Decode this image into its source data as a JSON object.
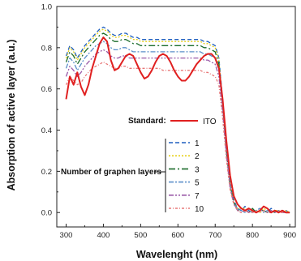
{
  "chart_data": {
    "type": "line",
    "title": "",
    "xlabel": "Wavelenght (nm)",
    "ylabel": "Absorption of active layer (a.u.)",
    "xlim": [
      275,
      915
    ],
    "ylim": [
      -0.07,
      1.0
    ],
    "xticks": [
      300,
      400,
      500,
      600,
      700,
      800,
      900
    ],
    "yticks": [
      0.0,
      0.2,
      0.4,
      0.6,
      0.8,
      1.0
    ],
    "xtick_labels": [
      "300",
      "400",
      "500",
      "600",
      "700",
      "800",
      "900"
    ],
    "ytick_labels": [
      "0.0",
      "0.2",
      "0.4",
      "0.6",
      "0.8",
      "1.0"
    ],
    "legend": {
      "standard_label": "Standard:",
      "standard_entry": "ITO",
      "group_label": "Number of graphen layers",
      "entries": [
        "1",
        "2",
        "3",
        "5",
        "7",
        "10"
      ]
    },
    "x": [
      300,
      310,
      320,
      330,
      340,
      350,
      360,
      370,
      380,
      390,
      400,
      410,
      420,
      430,
      440,
      450,
      460,
      470,
      480,
      490,
      500,
      510,
      520,
      530,
      540,
      550,
      560,
      570,
      580,
      590,
      600,
      610,
      620,
      630,
      640,
      650,
      660,
      670,
      680,
      690,
      700,
      710,
      720,
      730,
      740,
      750,
      760,
      770,
      780,
      790,
      800,
      810,
      820,
      830,
      840,
      850,
      860,
      870,
      880,
      890,
      900
    ],
    "series": [
      {
        "name": "ITO",
        "color": "#e02020",
        "dash": "solid",
        "values": [
          0.55,
          0.66,
          0.62,
          0.68,
          0.61,
          0.57,
          0.62,
          0.7,
          0.76,
          0.82,
          0.85,
          0.83,
          0.74,
          0.69,
          0.7,
          0.73,
          0.76,
          0.77,
          0.76,
          0.72,
          0.68,
          0.65,
          0.66,
          0.69,
          0.73,
          0.76,
          0.77,
          0.76,
          0.73,
          0.69,
          0.66,
          0.64,
          0.64,
          0.66,
          0.69,
          0.72,
          0.74,
          0.76,
          0.77,
          0.77,
          0.75,
          0.7,
          0.55,
          0.35,
          0.18,
          0.08,
          0.04,
          0.02,
          0.01,
          0.02,
          0.01,
          0.0,
          0.01,
          0.03,
          0.02,
          0.0,
          0.01,
          0.0,
          0.01,
          0.0,
          0.0
        ]
      },
      {
        "name": "1",
        "color": "#1f5fbf",
        "dash": "5,3",
        "values": [
          0.76,
          0.81,
          0.79,
          0.75,
          0.78,
          0.81,
          0.83,
          0.85,
          0.87,
          0.89,
          0.9,
          0.89,
          0.87,
          0.86,
          0.86,
          0.87,
          0.87,
          0.86,
          0.85,
          0.85,
          0.84,
          0.84,
          0.84,
          0.84,
          0.84,
          0.84,
          0.84,
          0.84,
          0.84,
          0.84,
          0.84,
          0.84,
          0.84,
          0.84,
          0.84,
          0.84,
          0.84,
          0.83,
          0.83,
          0.82,
          0.81,
          0.75,
          0.55,
          0.32,
          0.14,
          0.06,
          0.02,
          0.01,
          0.03,
          0.01,
          0.0,
          0.01,
          0.02,
          0.01,
          0.0,
          0.02,
          0.01,
          0.0,
          0.01,
          0.01,
          0.0
        ]
      },
      {
        "name": "2",
        "color": "#e8d01a",
        "dash": "2,2",
        "values": [
          0.75,
          0.8,
          0.78,
          0.74,
          0.77,
          0.8,
          0.82,
          0.84,
          0.86,
          0.88,
          0.89,
          0.88,
          0.86,
          0.85,
          0.85,
          0.86,
          0.86,
          0.85,
          0.84,
          0.84,
          0.83,
          0.83,
          0.83,
          0.83,
          0.83,
          0.83,
          0.83,
          0.83,
          0.83,
          0.83,
          0.83,
          0.83,
          0.83,
          0.83,
          0.83,
          0.83,
          0.83,
          0.82,
          0.82,
          0.81,
          0.8,
          0.74,
          0.54,
          0.31,
          0.14,
          0.05,
          0.02,
          0.02,
          0.02,
          0.0,
          0.01,
          0.01,
          0.0,
          0.02,
          0.01,
          0.0,
          0.01,
          0.01,
          0.0,
          0.01,
          0.0
        ]
      },
      {
        "name": "3",
        "color": "#1a6b2a",
        "dash": "8,3,2,3",
        "values": [
          0.73,
          0.78,
          0.76,
          0.72,
          0.75,
          0.78,
          0.8,
          0.82,
          0.84,
          0.86,
          0.87,
          0.86,
          0.84,
          0.83,
          0.83,
          0.84,
          0.84,
          0.83,
          0.82,
          0.82,
          0.81,
          0.81,
          0.81,
          0.81,
          0.81,
          0.81,
          0.81,
          0.81,
          0.81,
          0.81,
          0.81,
          0.81,
          0.81,
          0.81,
          0.81,
          0.81,
          0.81,
          0.8,
          0.8,
          0.79,
          0.78,
          0.72,
          0.53,
          0.3,
          0.13,
          0.05,
          0.01,
          0.02,
          0.01,
          0.0,
          0.02,
          0.0,
          0.01,
          0.01,
          0.0,
          0.01,
          0.0,
          0.01,
          0.0,
          0.0,
          0.0
        ]
      },
      {
        "name": "5",
        "color": "#5b8fc9",
        "dash": "6,2,2,2",
        "values": [
          0.7,
          0.75,
          0.73,
          0.69,
          0.72,
          0.75,
          0.77,
          0.79,
          0.81,
          0.82,
          0.83,
          0.82,
          0.8,
          0.79,
          0.79,
          0.8,
          0.8,
          0.79,
          0.78,
          0.78,
          0.78,
          0.78,
          0.78,
          0.78,
          0.78,
          0.78,
          0.78,
          0.78,
          0.78,
          0.78,
          0.78,
          0.78,
          0.78,
          0.78,
          0.78,
          0.78,
          0.78,
          0.77,
          0.77,
          0.76,
          0.75,
          0.69,
          0.51,
          0.29,
          0.13,
          0.04,
          0.02,
          0.01,
          0.0,
          0.01,
          0.0,
          0.01,
          0.02,
          0.0,
          0.01,
          0.0,
          0.01,
          0.0,
          0.01,
          0.0,
          0.0
        ]
      },
      {
        "name": "7",
        "color": "#9a5aa8",
        "dash": "6,2,2,2,2,2",
        "values": [
          0.66,
          0.71,
          0.69,
          0.66,
          0.68,
          0.71,
          0.73,
          0.75,
          0.77,
          0.78,
          0.79,
          0.78,
          0.76,
          0.75,
          0.75,
          0.76,
          0.76,
          0.75,
          0.75,
          0.75,
          0.75,
          0.75,
          0.75,
          0.75,
          0.75,
          0.75,
          0.75,
          0.75,
          0.75,
          0.75,
          0.75,
          0.75,
          0.75,
          0.75,
          0.75,
          0.75,
          0.75,
          0.74,
          0.74,
          0.73,
          0.72,
          0.66,
          0.49,
          0.28,
          0.12,
          0.04,
          0.01,
          0.0,
          0.01,
          0.0,
          0.01,
          0.0,
          0.01,
          0.01,
          0.0,
          0.01,
          0.0,
          0.01,
          0.0,
          0.0,
          0.0
        ]
      },
      {
        "name": "10",
        "color": "#e87878",
        "dash": "3,2,1,2",
        "values": [
          0.62,
          0.66,
          0.64,
          0.62,
          0.63,
          0.66,
          0.68,
          0.7,
          0.71,
          0.72,
          0.73,
          0.72,
          0.71,
          0.7,
          0.7,
          0.71,
          0.71,
          0.7,
          0.7,
          0.7,
          0.7,
          0.7,
          0.7,
          0.7,
          0.7,
          0.7,
          0.69,
          0.69,
          0.69,
          0.69,
          0.69,
          0.69,
          0.69,
          0.69,
          0.69,
          0.69,
          0.69,
          0.68,
          0.68,
          0.67,
          0.66,
          0.62,
          0.46,
          0.26,
          0.11,
          0.04,
          0.01,
          0.0,
          0.01,
          0.0,
          0.0,
          0.01,
          0.0,
          0.01,
          0.0,
          0.0,
          0.01,
          0.0,
          0.0,
          0.0,
          0.0
        ]
      }
    ]
  }
}
